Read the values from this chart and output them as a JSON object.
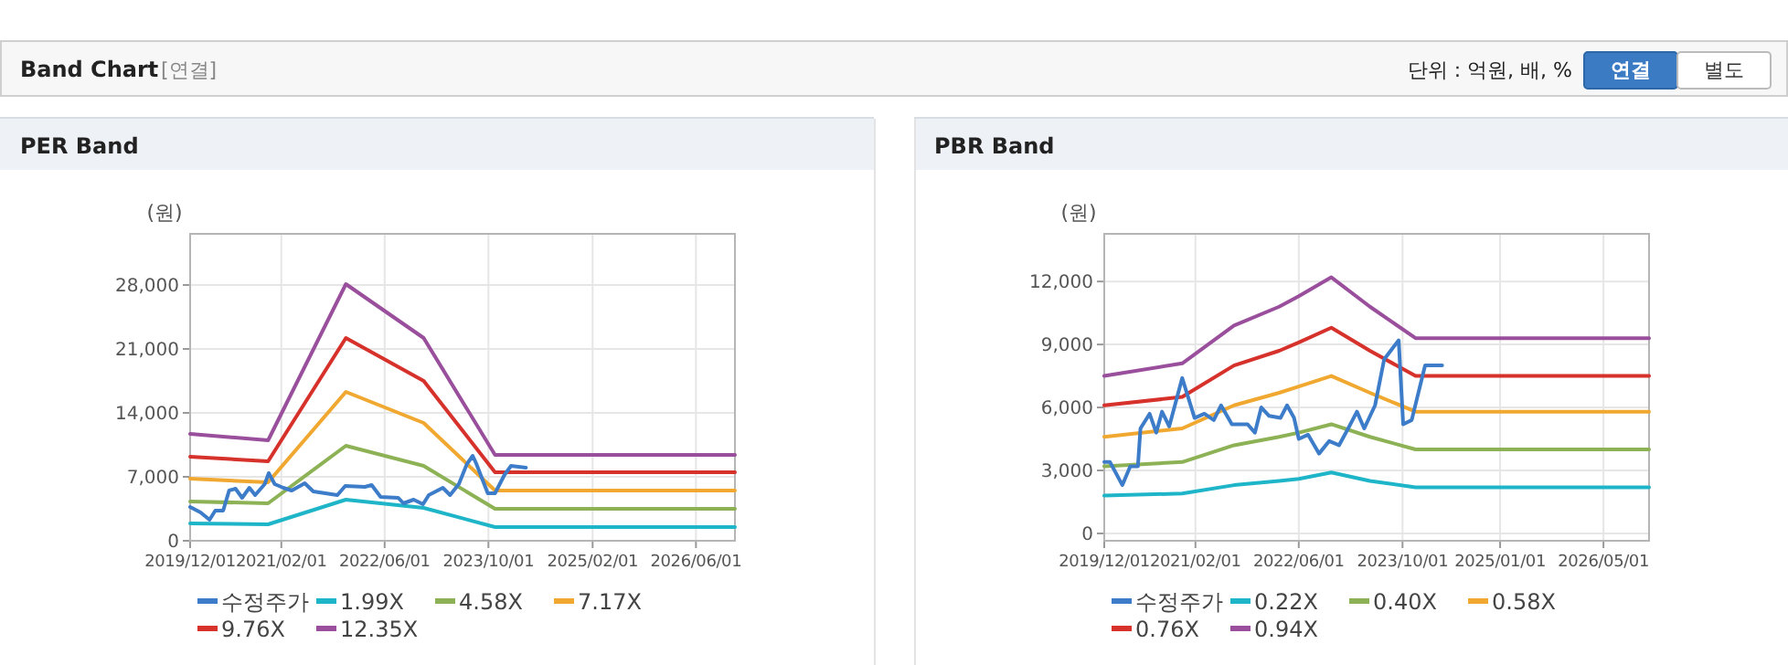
{
  "chart_data": [
    {
      "type": "other",
      "title": "Band Chart",
      "subtitle": "[연결]",
      "annotations": [
        "단위 : 억원, 배, %",
        "연결",
        "별도"
      ]
    },
    {
      "type": "line",
      "title": "PER Band",
      "ylabel": "(원)",
      "legend": "bottom",
      "grid": true,
      "marker": "none",
      "line_style": "solid",
      "xlim": [
        "2019-12-01",
        "2026-12-01"
      ],
      "xticks": [
        {
          "value": "2019-12-01",
          "label": "2019/12/01"
        },
        {
          "value": "2021-02-01",
          "label": "2021/02/01"
        },
        {
          "value": "2022-06-01",
          "label": "2022/06/01"
        },
        {
          "value": "2023-10-01",
          "label": "2023/10/01"
        },
        {
          "value": "2025-02-01",
          "label": "2025/02/01"
        },
        {
          "value": "2026-06-01",
          "label": "2026/06/01"
        }
      ],
      "ylim": [
        0,
        33600
      ],
      "yticks": [
        0,
        {
          "value": 7000,
          "label": "7,000"
        },
        {
          "value": 14000,
          "label": "14,000"
        },
        {
          "value": 21000,
          "label": "21,000"
        },
        {
          "value": 28000,
          "label": "28,000"
        }
      ],
      "series": [
        {
          "name": "수정주가",
          "color": "#3d7cc9",
          "x": [
            "2019-12-01",
            "2020-01-19",
            "2020-03-01",
            "2020-03-28",
            "2020-05-04",
            "2020-06-01",
            "2020-07-01",
            "2020-08-01",
            "2020-09-04",
            "2020-10-01",
            "2020-11-15",
            "2020-12-04",
            "2021-01-01",
            "2021-02-10",
            "2021-03-22",
            "2021-05-22",
            "2021-07-01",
            "2021-10-22",
            "2021-11-28",
            "2022-02-28",
            "2022-04-01",
            "2022-05-13",
            "2022-08-04",
            "2022-08-28",
            "2022-10-15",
            "2022-11-28",
            "2022-12-25",
            "2023-03-01",
            "2023-04-04",
            "2023-05-15",
            "2023-06-22",
            "2023-07-19",
            "2023-08-04",
            "2023-09-28",
            "2023-11-01",
            "2023-12-15",
            "2024-01-15",
            "2024-03-25"
          ],
          "values": [
            3700,
            3100,
            2300,
            3300,
            3300,
            5500,
            5700,
            4700,
            5800,
            5000,
            6200,
            7400,
            6200,
            5800,
            5500,
            6300,
            5400,
            5000,
            6000,
            5900,
            6100,
            4800,
            4700,
            4100,
            4500,
            4000,
            5000,
            5800,
            5000,
            6200,
            8400,
            9300,
            8500,
            5200,
            5200,
            7200,
            8200,
            8000
          ]
        },
        {
          "name": "1.99X",
          "color": "#1fb5c9",
          "x": [
            "2019-12-01",
            "2020-12-01",
            "2021-12-01",
            "2022-12-01",
            "2023-11-01",
            "2026-12-01"
          ],
          "values": [
            1900,
            1800,
            4500,
            3600,
            1500,
            1500
          ]
        },
        {
          "name": "4.58X",
          "color": "#8db255",
          "x": [
            "2019-12-01",
            "2020-12-01",
            "2021-12-01",
            "2022-12-01",
            "2023-11-01",
            "2026-12-01"
          ],
          "values": [
            4300,
            4100,
            10400,
            8200,
            3500,
            3500
          ]
        },
        {
          "name": "7.17X",
          "color": "#f0a830",
          "x": [
            "2019-12-01",
            "2020-12-01",
            "2021-12-01",
            "2022-12-01",
            "2023-11-01",
            "2026-12-01"
          ],
          "values": [
            6800,
            6400,
            16300,
            12900,
            5500,
            5500
          ]
        },
        {
          "name": "9.76X",
          "color": "#d6312a",
          "x": [
            "2019-12-01",
            "2020-12-01",
            "2021-12-01",
            "2022-12-01",
            "2023-11-01",
            "2026-12-01"
          ],
          "values": [
            9200,
            8700,
            22200,
            17500,
            7500,
            7500
          ]
        },
        {
          "name": "12.35X",
          "color": "#9a4f9d",
          "x": [
            "2019-12-01",
            "2020-12-01",
            "2021-12-01",
            "2022-12-01",
            "2023-11-01",
            "2026-12-01"
          ],
          "values": [
            11700,
            11000,
            28100,
            22200,
            9400,
            9400
          ]
        }
      ]
    },
    {
      "type": "line",
      "title": "PBR Band",
      "ylabel": "(원)",
      "legend": "bottom",
      "grid": true,
      "marker": "none",
      "line_style": "solid",
      "xlim": [
        "2019-12-01",
        "2026-12-01"
      ],
      "xticks": [
        {
          "value": "2019-12-01",
          "label": "2019/12/01"
        },
        {
          "value": "2021-02-01",
          "label": "2021/02/01"
        },
        {
          "value": "2022-06-01",
          "label": "2022/06/01"
        },
        {
          "value": "2023-10-01",
          "label": "2023/10/01"
        },
        {
          "value": "2025-01-01",
          "label": "2025/01/01"
        },
        {
          "value": "2026-05-01",
          "label": "2026/05/01"
        }
      ],
      "ylim": [
        -350,
        14270
      ],
      "yticks": [
        0,
        {
          "value": 3000,
          "label": "3,000"
        },
        {
          "value": 6000,
          "label": "6,000"
        },
        {
          "value": 9000,
          "label": "9,000"
        },
        {
          "value": 12000,
          "label": "12,000"
        }
      ],
      "series": [
        {
          "name": "수정주가",
          "color": "#3d7cc9",
          "x": [
            "2019-12-01",
            "2019-12-28",
            "2020-02-24",
            "2020-04-01",
            "2020-05-07",
            "2020-05-19",
            "2020-07-01",
            "2020-08-01",
            "2020-08-28",
            "2020-10-01",
            "2020-10-25",
            "2020-12-01",
            "2021-01-28",
            "2021-03-15",
            "2021-04-28",
            "2021-06-01",
            "2021-07-22",
            "2021-10-04",
            "2021-11-07",
            "2021-12-07",
            "2022-01-13",
            "2022-03-07",
            "2022-04-07",
            "2022-05-10",
            "2022-06-01",
            "2022-07-15",
            "2022-09-04",
            "2022-10-22",
            "2022-12-07",
            "2023-01-19",
            "2023-03-01",
            "2023-04-04",
            "2023-05-25",
            "2023-07-07",
            "2023-09-13",
            "2023-10-04",
            "2023-11-13",
            "2024-01-15",
            "2024-04-04"
          ],
          "values": [
            3400,
            3400,
            2300,
            3200,
            3200,
            5000,
            5700,
            4800,
            5800,
            5100,
            6000,
            7400,
            5500,
            5700,
            5400,
            6100,
            5200,
            5200,
            4800,
            6000,
            5600,
            5500,
            6100,
            5500,
            4500,
            4700,
            3800,
            4400,
            4200,
            5000,
            5800,
            5000,
            6100,
            8300,
            9200,
            5200,
            5400,
            8000,
            8000
          ]
        },
        {
          "name": "0.22X",
          "color": "#1fb5c9",
          "x": [
            "2019-12-01",
            "2020-12-01",
            "2021-08-01",
            "2022-03-01",
            "2022-06-01",
            "2022-11-01",
            "2023-05-01",
            "2023-12-01",
            "2026-12-01"
          ],
          "values": [
            1800,
            1900,
            2300,
            2500,
            2600,
            2900,
            2500,
            2200,
            2200
          ]
        },
        {
          "name": "0.40X",
          "color": "#8db255",
          "x": [
            "2019-12-01",
            "2020-12-01",
            "2021-08-01",
            "2022-03-01",
            "2022-06-01",
            "2022-11-01",
            "2023-05-01",
            "2023-12-01",
            "2026-12-01"
          ],
          "values": [
            3200,
            3400,
            4200,
            4600,
            4800,
            5200,
            4600,
            4000,
            4000
          ]
        },
        {
          "name": "0.58X",
          "color": "#f0a830",
          "x": [
            "2019-12-01",
            "2020-12-01",
            "2021-08-01",
            "2022-03-01",
            "2022-06-01",
            "2022-11-01",
            "2023-05-01",
            "2023-12-01",
            "2026-12-01"
          ],
          "values": [
            4600,
            5000,
            6100,
            6700,
            7000,
            7500,
            6700,
            5800,
            5800
          ]
        },
        {
          "name": "0.76X",
          "color": "#d6312a",
          "x": [
            "2019-12-01",
            "2020-12-01",
            "2021-08-01",
            "2022-03-01",
            "2022-06-01",
            "2022-11-01",
            "2023-05-01",
            "2023-12-01",
            "2026-12-01"
          ],
          "values": [
            6100,
            6500,
            8000,
            8700,
            9100,
            9800,
            8700,
            7500,
            7500
          ]
        },
        {
          "name": "0.94X",
          "color": "#9a4f9d",
          "x": [
            "2019-12-01",
            "2020-12-01",
            "2021-08-01",
            "2022-03-01",
            "2022-06-01",
            "2022-11-01",
            "2023-05-01",
            "2023-12-01",
            "2026-12-01"
          ],
          "values": [
            7500,
            8100,
            9900,
            10800,
            11300,
            12200,
            10800,
            9300,
            9300
          ]
        }
      ]
    }
  ]
}
